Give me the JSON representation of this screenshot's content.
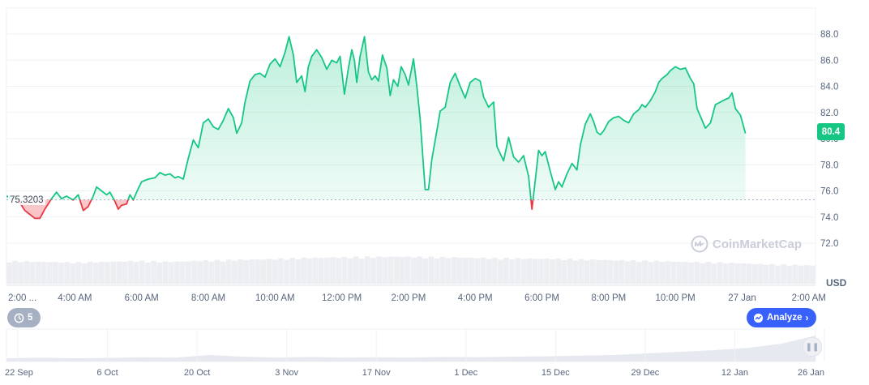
{
  "chart_data": {
    "type": "area",
    "currency": "USD",
    "current_price": "80.4",
    "reference_price": "75.3203",
    "watermark": "CoinMarketCap",
    "ylim": [
      70.2,
      90.2
    ],
    "y_ticks": [
      "72.0",
      "74.0",
      "76.0",
      "78.0",
      "80.0",
      "82.0",
      "84.0",
      "86.0",
      "88.0"
    ],
    "y_tick_values": [
      72,
      74,
      76,
      78,
      80,
      82,
      84,
      86,
      88
    ],
    "x_tick_labels": [
      "2:00 ...",
      "4:00 AM",
      "6:00 AM",
      "8:00 AM",
      "10:00 AM",
      "12:00 PM",
      "2:00 PM",
      "4:00 PM",
      "6:00 PM",
      "8:00 PM",
      "10:00 PM",
      "27 Jan",
      "2:00 AM"
    ],
    "x_tick_hours": [
      2,
      4,
      6,
      8,
      10,
      12,
      14,
      16,
      18,
      20,
      22,
      24,
      26
    ],
    "x_range_hours": [
      1.95,
      26.2
    ],
    "series": [
      {
        "points": [
          [
            1.95,
            75.6
          ],
          [
            2.05,
            75.5
          ],
          [
            2.3,
            75.3
          ],
          [
            2.5,
            74.5
          ],
          [
            2.65,
            74.2
          ],
          [
            2.8,
            73.9
          ],
          [
            2.95,
            73.9
          ],
          [
            3.1,
            74.6
          ],
          [
            3.3,
            75.4
          ],
          [
            3.45,
            75.9
          ],
          [
            3.6,
            75.4
          ],
          [
            3.75,
            75.6
          ],
          [
            3.95,
            75.3
          ],
          [
            4.1,
            75.7
          ],
          [
            4.25,
            74.5
          ],
          [
            4.4,
            74.8
          ],
          [
            4.55,
            75.6
          ],
          [
            4.65,
            76.3
          ],
          [
            4.8,
            76.0
          ],
          [
            4.95,
            75.7
          ],
          [
            5.05,
            75.9
          ],
          [
            5.2,
            75.2
          ],
          [
            5.3,
            74.6
          ],
          [
            5.4,
            74.9
          ],
          [
            5.55,
            75.0
          ],
          [
            5.65,
            75.7
          ],
          [
            5.75,
            75.3
          ],
          [
            5.85,
            75.9
          ],
          [
            6.0,
            76.7
          ],
          [
            6.2,
            76.9
          ],
          [
            6.4,
            77.0
          ],
          [
            6.55,
            77.4
          ],
          [
            6.7,
            77.2
          ],
          [
            6.85,
            77.3
          ],
          [
            7.0,
            77.0
          ],
          [
            7.1,
            77.1
          ],
          [
            7.25,
            76.9
          ],
          [
            7.4,
            78.5
          ],
          [
            7.55,
            79.9
          ],
          [
            7.7,
            79.3
          ],
          [
            7.85,
            81.2
          ],
          [
            8.0,
            81.5
          ],
          [
            8.15,
            80.9
          ],
          [
            8.3,
            80.7
          ],
          [
            8.45,
            81.4
          ],
          [
            8.6,
            82.3
          ],
          [
            8.75,
            81.6
          ],
          [
            8.85,
            80.4
          ],
          [
            9.0,
            81.2
          ],
          [
            9.1,
            82.8
          ],
          [
            9.25,
            84.4
          ],
          [
            9.4,
            84.9
          ],
          [
            9.55,
            85.0
          ],
          [
            9.7,
            84.7
          ],
          [
            9.85,
            85.7
          ],
          [
            10.0,
            86.1
          ],
          [
            10.15,
            85.5
          ],
          [
            10.3,
            86.6
          ],
          [
            10.42,
            87.8
          ],
          [
            10.55,
            86.4
          ],
          [
            10.65,
            84.3
          ],
          [
            10.8,
            84.8
          ],
          [
            10.9,
            83.6
          ],
          [
            11.0,
            85.5
          ],
          [
            11.1,
            86.3
          ],
          [
            11.25,
            86.8
          ],
          [
            11.4,
            86.2
          ],
          [
            11.55,
            85.3
          ],
          [
            11.7,
            86.0
          ],
          [
            11.85,
            85.8
          ],
          [
            11.95,
            86.3
          ],
          [
            12.08,
            83.4
          ],
          [
            12.2,
            85.4
          ],
          [
            12.3,
            86.8
          ],
          [
            12.38,
            86.0
          ],
          [
            12.45,
            84.3
          ],
          [
            12.55,
            86.3
          ],
          [
            12.68,
            87.8
          ],
          [
            12.8,
            85.1
          ],
          [
            12.9,
            84.5
          ],
          [
            13.0,
            84.8
          ],
          [
            13.1,
            84.4
          ],
          [
            13.22,
            86.4
          ],
          [
            13.35,
            85.4
          ],
          [
            13.45,
            83.3
          ],
          [
            13.55,
            84.5
          ],
          [
            13.68,
            84.0
          ],
          [
            13.78,
            85.5
          ],
          [
            13.9,
            84.9
          ],
          [
            14.0,
            84.1
          ],
          [
            14.15,
            86.1
          ],
          [
            14.25,
            84.0
          ],
          [
            14.35,
            81.5
          ],
          [
            14.5,
            76.1
          ],
          [
            14.6,
            76.1
          ],
          [
            14.7,
            78.4
          ],
          [
            14.85,
            80.6
          ],
          [
            14.95,
            82.1
          ],
          [
            15.1,
            82.4
          ],
          [
            15.25,
            84.3
          ],
          [
            15.4,
            85.0
          ],
          [
            15.55,
            84.0
          ],
          [
            15.7,
            83.1
          ],
          [
            15.85,
            84.3
          ],
          [
            16.0,
            84.6
          ],
          [
            16.15,
            84.4
          ],
          [
            16.25,
            83.2
          ],
          [
            16.4,
            82.4
          ],
          [
            16.55,
            82.8
          ],
          [
            16.65,
            79.4
          ],
          [
            16.85,
            78.3
          ],
          [
            17.0,
            80.1
          ],
          [
            17.15,
            78.6
          ],
          [
            17.3,
            78.2
          ],
          [
            17.45,
            78.7
          ],
          [
            17.6,
            77.1
          ],
          [
            17.7,
            74.6
          ],
          [
            17.8,
            76.8
          ],
          [
            17.9,
            79.1
          ],
          [
            18.0,
            78.7
          ],
          [
            18.1,
            79.0
          ],
          [
            18.25,
            77.5
          ],
          [
            18.4,
            76.1
          ],
          [
            18.5,
            76.7
          ],
          [
            18.6,
            76.3
          ],
          [
            18.75,
            77.3
          ],
          [
            18.9,
            78.1
          ],
          [
            19.05,
            77.6
          ],
          [
            19.15,
            79.5
          ],
          [
            19.3,
            81.1
          ],
          [
            19.45,
            81.9
          ],
          [
            19.55,
            81.3
          ],
          [
            19.65,
            80.5
          ],
          [
            19.75,
            80.3
          ],
          [
            19.85,
            80.6
          ],
          [
            20.0,
            81.3
          ],
          [
            20.15,
            81.6
          ],
          [
            20.3,
            81.7
          ],
          [
            20.45,
            81.4
          ],
          [
            20.6,
            81.2
          ],
          [
            20.75,
            81.9
          ],
          [
            20.9,
            82.2
          ],
          [
            21.0,
            82.6
          ],
          [
            21.1,
            82.4
          ],
          [
            21.25,
            82.9
          ],
          [
            21.4,
            83.6
          ],
          [
            21.5,
            84.3
          ],
          [
            21.6,
            84.6
          ],
          [
            21.75,
            84.9
          ],
          [
            21.85,
            85.2
          ],
          [
            22.0,
            85.5
          ],
          [
            22.15,
            85.3
          ],
          [
            22.3,
            85.4
          ],
          [
            22.45,
            84.6
          ],
          [
            22.55,
            84.2
          ],
          [
            22.65,
            82.3
          ],
          [
            22.8,
            81.4
          ],
          [
            22.9,
            80.8
          ],
          [
            23.05,
            81.2
          ],
          [
            23.2,
            82.6
          ],
          [
            23.35,
            82.8
          ],
          [
            23.5,
            83.0
          ],
          [
            23.6,
            83.1
          ],
          [
            23.7,
            83.5
          ],
          [
            23.8,
            82.3
          ],
          [
            23.95,
            81.8
          ],
          [
            24.1,
            80.4
          ]
        ]
      }
    ],
    "volume_profile": [
      0.62,
      0.6,
      0.58,
      0.6,
      0.62,
      0.6,
      0.63,
      0.65,
      0.67,
      0.7,
      0.72,
      0.73,
      0.74,
      0.73,
      0.72,
      0.7,
      0.69,
      0.68,
      0.66,
      0.64,
      0.62,
      0.6,
      0.58,
      0.55,
      0.52,
      0.5
    ],
    "navigator": {
      "labels": [
        "22 Sep",
        "6 Oct",
        "20 Oct",
        "3 Nov",
        "17 Nov",
        "1 Dec",
        "15 Dec",
        "29 Dec",
        "12 Jan",
        "26 Jan"
      ],
      "profile": [
        0.1,
        0.12,
        0.1,
        0.11,
        0.13,
        0.12,
        0.2,
        0.15,
        0.12,
        0.14,
        0.12,
        0.13,
        0.12,
        0.14,
        0.13,
        0.15,
        0.16,
        0.18,
        0.2,
        0.25,
        0.3,
        0.35,
        0.42,
        0.55,
        0.8
      ]
    },
    "colors": {
      "up": "#16c784",
      "down": "#ea3943",
      "accent": "#3861fb"
    }
  },
  "controls": {
    "events_count": "5",
    "analyze_label": "Analyze"
  }
}
